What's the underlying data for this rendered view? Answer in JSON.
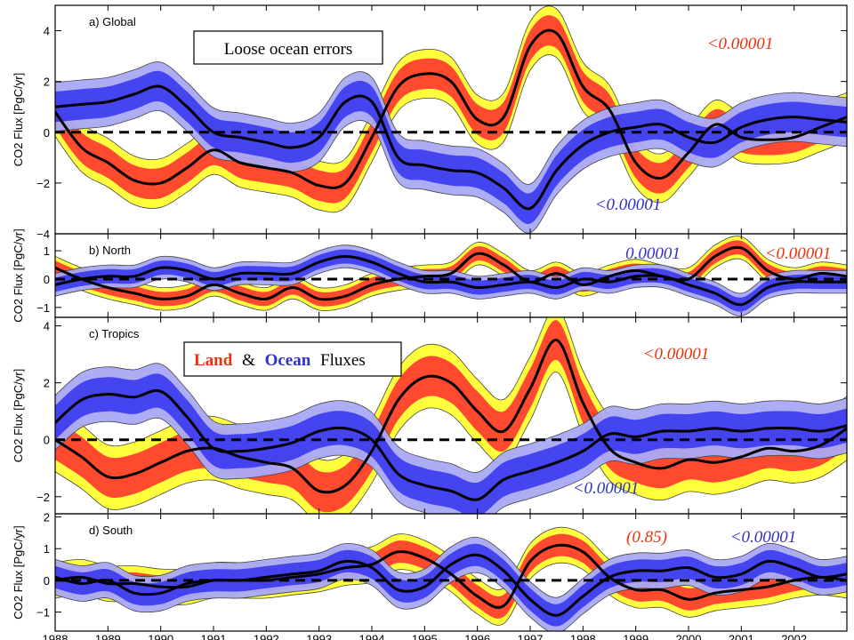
{
  "colors": {
    "land_core": "#ff3b2f",
    "land_outer": "#ffff33",
    "ocean_core": "#3b3bef",
    "ocean_outer": "#a9a9f5",
    "mean_line": "#000000",
    "pval_land": "#e8320c",
    "pval_ocean": "#3030c8"
  },
  "callouts": {
    "loose_ocean": "Loose ocean errors",
    "legend_land": "Land",
    "legend_amp": "&",
    "legend_ocean": "Ocean",
    "legend_fluxes": "Fluxes"
  },
  "chart_data": [
    {
      "type": "area",
      "title": "a) Global",
      "ylabel": "CO2 Flux [PgC/yr]",
      "ylim": [
        -4,
        5
      ],
      "yticks": [
        4,
        2,
        0,
        -2,
        -4
      ],
      "xlim": [
        1988,
        2003
      ],
      "xticks": [
        1988,
        1989,
        1990,
        1991,
        1992,
        1993,
        1994,
        1995,
        1996,
        1997,
        1998,
        1999,
        2000,
        2001,
        2002
      ],
      "annotations": [
        {
          "text": "<0.00001",
          "color": "land"
        },
        {
          "text": "<0.00001",
          "color": "ocean"
        }
      ],
      "series": [
        {
          "name": "Land",
          "x": [
            1988,
            1988.5,
            1989,
            1989.5,
            1990,
            1990.5,
            1991,
            1991.5,
            1992,
            1992.5,
            1993,
            1993.5,
            1994,
            1994.5,
            1995,
            1995.5,
            1996,
            1996.5,
            1997,
            1997.5,
            1998,
            1998.5,
            1999,
            1999.5,
            2000,
            2000.5,
            2001,
            2001.5,
            2002,
            2002.5,
            2003
          ],
          "values": [
            0.8,
            -0.6,
            -1.2,
            -1.9,
            -2.0,
            -1.4,
            -0.7,
            -1.2,
            -1.4,
            -1.6,
            -2.1,
            -2.0,
            -0.2,
            1.8,
            2.3,
            2.0,
            0.5,
            0.6,
            3.4,
            3.9,
            1.8,
            0.9,
            -1.2,
            -1.8,
            -0.8,
            0.3,
            -0.2,
            -0.3,
            -0.2,
            0.2,
            0.6
          ],
          "spread": 0.6
        },
        {
          "name": "Ocean",
          "x": [
            1988,
            1988.5,
            1989,
            1989.5,
            1990,
            1990.5,
            1991,
            1991.5,
            1992,
            1992.5,
            1993,
            1993.5,
            1994,
            1994.5,
            1995,
            1995.5,
            1996,
            1996.5,
            1997,
            1997.5,
            1998,
            1998.5,
            1999,
            1999.5,
            2000,
            2000.5,
            2001,
            2001.5,
            2002,
            2002.5,
            2003
          ],
          "values": [
            1.0,
            1.1,
            1.2,
            1.5,
            1.8,
            1.0,
            0.0,
            -0.2,
            -0.4,
            -0.6,
            -0.2,
            1.2,
            1.2,
            -1.0,
            -1.3,
            -1.5,
            -1.6,
            -2.2,
            -3.0,
            -1.5,
            -0.5,
            0.0,
            0.2,
            0.3,
            -0.2,
            -0.4,
            0.2,
            0.5,
            0.6,
            0.5,
            0.4
          ],
          "spread": 0.6
        }
      ]
    },
    {
      "type": "area",
      "title": "b) North",
      "ylabel": "CO2 Flux [PgC/yr]",
      "ylim": [
        -1.35,
        1.6
      ],
      "yticks": [
        1,
        0,
        -1
      ],
      "xlim": [
        1988,
        2003
      ],
      "annotations": [
        {
          "text": "0.00001",
          "color": "ocean"
        },
        {
          "text": "<0.00001",
          "color": "land"
        }
      ],
      "series": [
        {
          "name": "Land",
          "x": [
            1988,
            1988.5,
            1989,
            1989.5,
            1990,
            1990.5,
            1991,
            1991.5,
            1992,
            1992.5,
            1993,
            1993.5,
            1994,
            1994.5,
            1995,
            1995.5,
            1996,
            1996.5,
            1997,
            1997.5,
            1998,
            1998.5,
            1999,
            1999.5,
            2000,
            2000.5,
            2001,
            2001.5,
            2002,
            2002.5,
            2003
          ],
          "values": [
            0.4,
            0.0,
            -0.3,
            -0.5,
            -0.7,
            -0.6,
            -0.2,
            -0.5,
            -0.7,
            -0.3,
            -0.7,
            -0.6,
            -0.2,
            0.0,
            0.1,
            0.2,
            0.9,
            0.5,
            -0.1,
            0.2,
            -0.2,
            0.1,
            0.3,
            0.1,
            0.0,
            0.8,
            1.1,
            0.3,
            0.0,
            0.2,
            0.1
          ],
          "spread": 0.25
        },
        {
          "name": "Ocean",
          "x": [
            1988,
            1988.5,
            1989,
            1989.5,
            1990,
            1990.5,
            1991,
            1991.5,
            1992,
            1992.5,
            1993,
            1993.5,
            1994,
            1994.5,
            1995,
            1995.5,
            1996,
            1996.5,
            1997,
            1997.5,
            1998,
            1998.5,
            1999,
            1999.5,
            2000,
            2000.5,
            2001,
            2001.5,
            2002,
            2002.5,
            2003
          ],
          "values": [
            -0.2,
            0.0,
            0.1,
            0.1,
            0.4,
            0.3,
            0.0,
            0.2,
            0.2,
            0.2,
            0.6,
            0.8,
            0.6,
            0.2,
            -0.1,
            -0.1,
            -0.3,
            -0.2,
            -0.1,
            -0.3,
            0.0,
            -0.1,
            0.1,
            0.1,
            -0.2,
            -0.5,
            -0.9,
            -0.3,
            -0.1,
            -0.1,
            -0.1
          ],
          "spread": 0.25
        }
      ]
    },
    {
      "type": "area",
      "title": "c) Tropics",
      "ylabel": "CO2 Flux [PgC/yr]",
      "ylim": [
        -2.6,
        4.3
      ],
      "yticks": [
        4,
        2,
        0,
        -2
      ],
      "xlim": [
        1988,
        2003
      ],
      "annotations": [
        {
          "text": "<0.00001",
          "color": "land"
        },
        {
          "text": "<0.00001",
          "color": "ocean"
        }
      ],
      "series": [
        {
          "name": "Land",
          "x": [
            1988,
            1988.5,
            1989,
            1989.5,
            1990,
            1990.5,
            1991,
            1991.5,
            1992,
            1992.5,
            1993,
            1993.5,
            1994,
            1994.5,
            1995,
            1995.5,
            1996,
            1996.5,
            1997,
            1997.5,
            1998,
            1998.5,
            1999,
            1999.5,
            2000,
            2000.5,
            2001,
            2001.5,
            2002,
            2002.5,
            2003
          ],
          "values": [
            0.0,
            -0.6,
            -1.3,
            -1.2,
            -0.8,
            -0.4,
            -0.3,
            -0.6,
            -0.8,
            -1.0,
            -1.8,
            -1.6,
            -0.4,
            1.4,
            2.2,
            2.0,
            1.0,
            0.3,
            1.8,
            3.5,
            1.3,
            -0.3,
            -0.8,
            -1.0,
            -0.7,
            -0.8,
            -0.6,
            -0.3,
            -0.4,
            -0.2,
            0.4
          ],
          "spread": 0.7
        },
        {
          "name": "Ocean",
          "x": [
            1988,
            1988.5,
            1989,
            1989.5,
            1990,
            1990.5,
            1991,
            1991.5,
            1992,
            1992.5,
            1993,
            1993.5,
            1994,
            1994.5,
            1995,
            1995.5,
            1996,
            1996.5,
            1997,
            1997.5,
            1998,
            1998.5,
            1999,
            1999.5,
            2000,
            2000.5,
            2001,
            2001.5,
            2002,
            2002.5,
            2003
          ],
          "values": [
            0.6,
            1.4,
            1.6,
            1.5,
            1.7,
            0.8,
            -0.3,
            -0.4,
            -0.3,
            -0.1,
            0.3,
            0.4,
            0.0,
            -1.2,
            -1.6,
            -1.8,
            -2.1,
            -1.4,
            -1.1,
            -0.8,
            -0.4,
            0.2,
            0.1,
            0.3,
            0.3,
            0.4,
            0.3,
            0.4,
            0.4,
            0.3,
            0.5
          ],
          "spread": 0.6
        }
      ]
    },
    {
      "type": "area",
      "title": "d) South",
      "ylabel": "CO2 Flux [PgC/yr]",
      "ylim": [
        -1.6,
        2.1
      ],
      "yticks": [
        2,
        1,
        0,
        -1
      ],
      "xlim": [
        1988,
        2003
      ],
      "annotations": [
        {
          "text": "(0.85)",
          "color": "land"
        },
        {
          "text": "<0.00001",
          "color": "ocean"
        }
      ],
      "series": [
        {
          "name": "Land",
          "x": [
            1988,
            1988.5,
            1989,
            1989.5,
            1990,
            1990.5,
            1991,
            1991.5,
            1992,
            1992.5,
            1993,
            1993.5,
            1994,
            1994.5,
            1995,
            1995.5,
            1996,
            1996.5,
            1997,
            1997.5,
            1998,
            1998.5,
            1999,
            1999.5,
            2000,
            2000.5,
            2001,
            2001.5,
            2002,
            2002.5,
            2003
          ],
          "values": [
            0.0,
            0.1,
            -0.1,
            -0.1,
            -0.2,
            -0.2,
            0.0,
            0.0,
            0.0,
            0.1,
            0.2,
            0.4,
            0.5,
            0.9,
            0.7,
            0.2,
            -0.5,
            -0.8,
            0.6,
            1.1,
            0.9,
            0.1,
            -0.3,
            -0.3,
            -0.6,
            -0.4,
            -0.3,
            -0.2,
            0.0,
            0.1,
            0.0
          ],
          "spread": 0.35
        },
        {
          "name": "Ocean",
          "x": [
            1988,
            1988.5,
            1989,
            1989.5,
            1990,
            1990.5,
            1991,
            1991.5,
            1992,
            1992.5,
            1993,
            1993.5,
            1994,
            1994.5,
            1995,
            1995.5,
            1996,
            1996.5,
            1997,
            1997.5,
            1998,
            1998.5,
            1999,
            1999.5,
            2000,
            2000.5,
            2001,
            2001.5,
            2002,
            2002.5,
            2003
          ],
          "values": [
            0.1,
            -0.1,
            0.0,
            -0.4,
            -0.4,
            -0.1,
            0.0,
            0.0,
            0.1,
            0.2,
            0.3,
            0.6,
            0.4,
            -0.3,
            -0.2,
            0.5,
            0.8,
            0.3,
            -0.6,
            -1.1,
            -0.5,
            0.1,
            0.3,
            0.3,
            0.4,
            0.1,
            0.2,
            0.6,
            0.4,
            0.1,
            0.2
          ],
          "spread": 0.35
        }
      ]
    }
  ]
}
